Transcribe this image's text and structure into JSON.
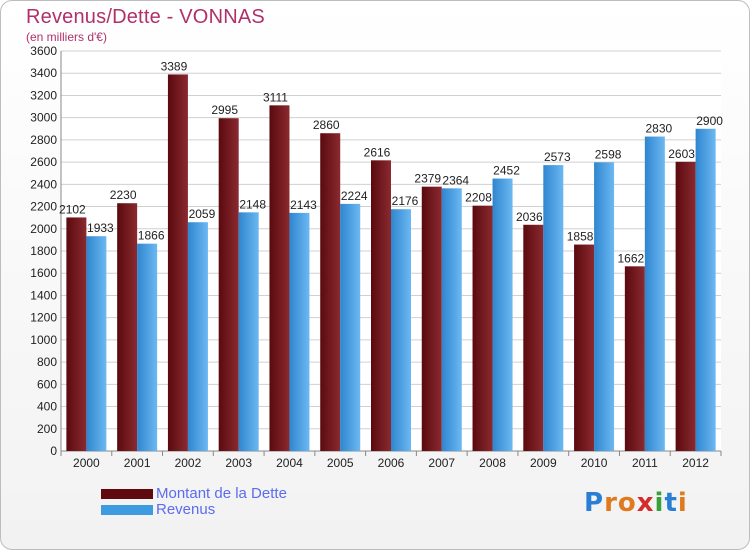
{
  "header": {
    "title": "Revenus/Dette - VONNAS",
    "subtitle": "(en milliers d'€)"
  },
  "colors": {
    "dette": "#7a1a1e",
    "revenus": "#4ea3e6",
    "title": "#b0306a",
    "legend_text": "#5a6cf0"
  },
  "legend": [
    {
      "label": "Montant de la Dette",
      "color": "#6a0e12"
    },
    {
      "label": "Revenus",
      "color": "#3d9be0"
    }
  ],
  "logo": {
    "text": "Proxiti"
  },
  "chart_data": {
    "type": "bar",
    "categories": [
      "2000",
      "2001",
      "2002",
      "2003",
      "2004",
      "2005",
      "2006",
      "2007",
      "2008",
      "2009",
      "2010",
      "2011",
      "2012"
    ],
    "series": [
      {
        "name": "Montant de la Dette",
        "values": [
          2102,
          2230,
          3389,
          2995,
          3111,
          2860,
          2616,
          2379,
          2208,
          2036,
          1858,
          1662,
          2603
        ]
      },
      {
        "name": "Revenus",
        "values": [
          1933,
          1866,
          2059,
          2148,
          2143,
          2224,
          2176,
          2364,
          2452,
          2573,
          2598,
          2830,
          2900
        ]
      }
    ],
    "ylim": [
      0,
      3600
    ],
    "yticks": [
      0,
      200,
      400,
      600,
      800,
      1000,
      1200,
      1400,
      1600,
      1800,
      2000,
      2200,
      2400,
      2600,
      2800,
      3000,
      3200,
      3400,
      3600
    ],
    "grid": true,
    "legend_position": "bottom-left"
  }
}
